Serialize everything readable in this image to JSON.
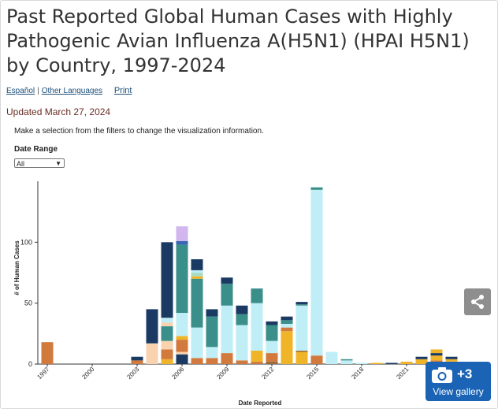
{
  "page": {
    "title": "Past Reported Global Human Cases with Highly Pathogenic Avian Influenza A(H5N1) (HPAI H5N1) by Country, 1997-2024",
    "lang_link": "Español",
    "separator": "|",
    "other_lang_link": "Other Languages",
    "print_link": "Print",
    "updated": "Updated March 27, 2024",
    "instructions": "Make a selection from the filters to change the visualization information.",
    "filter_label": "Date Range",
    "filter_value": "All",
    "share_icon": "share-icon",
    "gallery_count": "+3",
    "gallery_label": "View gallery",
    "gallery_icon": "camera-icon"
  },
  "chart_data": {
    "type": "bar",
    "stacked": true,
    "xlabel": "Date Reported",
    "ylabel": "# of Human Cases",
    "ylim": [
      0,
      150
    ],
    "y_ticks": [
      0,
      50,
      100
    ],
    "x_tick_labels": [
      "1997",
      "2000",
      "2003",
      "2006",
      "2009",
      "2012",
      "2015",
      "2018",
      "2021"
    ],
    "colors": {
      "navy": "#1b3a63",
      "cyan": "#bfeef6",
      "teal": "#3a8f8a",
      "orange": "#d27a3e",
      "peach": "#f9d3b0",
      "gold": "#f0b429",
      "lavender": "#d2b6ee",
      "blue": "#3b66b3",
      "lightgreen": "#a8dcc4",
      "brown": "#9c6b3a"
    },
    "bars": [
      {
        "x": 1997,
        "segments": [
          {
            "color": "orange",
            "value": 18
          }
        ]
      },
      {
        "x": 2003,
        "segments": [
          {
            "color": "orange",
            "value": 3
          },
          {
            "color": "navy",
            "value": 3
          }
        ]
      },
      {
        "x": 2004,
        "segments": [
          {
            "color": "peach",
            "value": 17
          },
          {
            "color": "navy",
            "value": 28
          }
        ]
      },
      {
        "x": 2005,
        "segments": [
          {
            "color": "gold",
            "value": 4
          },
          {
            "color": "orange",
            "value": 8
          },
          {
            "color": "peach",
            "value": 7
          },
          {
            "color": "teal",
            "value": 12
          },
          {
            "color": "peach",
            "value": 3
          },
          {
            "color": "cyan",
            "value": 4
          },
          {
            "color": "navy",
            "value": 62
          }
        ]
      },
      {
        "x": 2006,
        "segments": [
          {
            "color": "navy",
            "value": 8
          },
          {
            "color": "peach",
            "value": 2
          },
          {
            "color": "orange",
            "value": 10
          },
          {
            "color": "gold",
            "value": 3
          },
          {
            "color": "cyan",
            "value": 19
          },
          {
            "color": "teal",
            "value": 56
          },
          {
            "color": "blue",
            "value": 3
          },
          {
            "color": "lavender",
            "value": 12
          }
        ]
      },
      {
        "x": 2007,
        "segments": [
          {
            "color": "orange",
            "value": 5
          },
          {
            "color": "cyan",
            "value": 25
          },
          {
            "color": "teal",
            "value": 40
          },
          {
            "color": "gold",
            "value": 2
          },
          {
            "color": "lightgreen",
            "value": 3
          },
          {
            "color": "cyan",
            "value": 2
          },
          {
            "color": "navy",
            "value": 9
          }
        ]
      },
      {
        "x": 2008,
        "segments": [
          {
            "color": "orange",
            "value": 5
          },
          {
            "color": "cyan",
            "value": 9
          },
          {
            "color": "teal",
            "value": 25
          },
          {
            "color": "navy",
            "value": 6
          }
        ]
      },
      {
        "x": 2009,
        "segments": [
          {
            "color": "orange",
            "value": 9
          },
          {
            "color": "cyan",
            "value": 39
          },
          {
            "color": "teal",
            "value": 18
          },
          {
            "color": "navy",
            "value": 5
          }
        ]
      },
      {
        "x": 2010,
        "segments": [
          {
            "color": "orange",
            "value": 3
          },
          {
            "color": "cyan",
            "value": 29
          },
          {
            "color": "teal",
            "value": 9
          },
          {
            "color": "navy",
            "value": 7
          }
        ]
      },
      {
        "x": 2011,
        "segments": [
          {
            "color": "orange",
            "value": 2
          },
          {
            "color": "gold",
            "value": 9
          },
          {
            "color": "cyan",
            "value": 39
          },
          {
            "color": "teal",
            "value": 12
          }
        ]
      },
      {
        "x": 2012,
        "segments": [
          {
            "color": "brown",
            "value": 2
          },
          {
            "color": "orange",
            "value": 7
          },
          {
            "color": "cyan",
            "value": 10
          },
          {
            "color": "teal",
            "value": 13
          },
          {
            "color": "navy",
            "value": 3
          }
        ]
      },
      {
        "x": 2013,
        "segments": [
          {
            "color": "gold",
            "value": 27
          },
          {
            "color": "orange",
            "value": 3
          },
          {
            "color": "cyan",
            "value": 3
          },
          {
            "color": "teal",
            "value": 3
          },
          {
            "color": "navy",
            "value": 3
          }
        ]
      },
      {
        "x": 2014,
        "segments": [
          {
            "color": "gold",
            "value": 10
          },
          {
            "color": "brown",
            "value": 1
          },
          {
            "color": "cyan",
            "value": 37
          },
          {
            "color": "teal",
            "value": 1
          },
          {
            "color": "navy",
            "value": 2
          }
        ]
      },
      {
        "x": 2015,
        "segments": [
          {
            "color": "orange",
            "value": 7
          },
          {
            "color": "cyan",
            "value": 136
          },
          {
            "color": "teal",
            "value": 2
          }
        ]
      },
      {
        "x": 2016,
        "segments": [
          {
            "color": "cyan",
            "value": 10
          }
        ]
      },
      {
        "x": 2017,
        "segments": [
          {
            "color": "cyan",
            "value": 3
          },
          {
            "color": "teal",
            "value": 1
          }
        ]
      },
      {
        "x": 2018,
        "segments": [
          {
            "color": "cyan",
            "value": 1
          }
        ]
      },
      {
        "x": 2019,
        "segments": [
          {
            "color": "gold",
            "value": 1
          }
        ]
      },
      {
        "x": 2020,
        "segments": [
          {
            "color": "navy",
            "value": 1
          }
        ]
      },
      {
        "x": 2021,
        "segments": [
          {
            "color": "gold",
            "value": 2
          }
        ]
      },
      {
        "x": 2022,
        "segments": [
          {
            "color": "gold",
            "value": 4
          },
          {
            "color": "navy",
            "value": 2
          }
        ]
      },
      {
        "x": 2023,
        "segments": [
          {
            "color": "orange",
            "value": 3
          },
          {
            "color": "gold",
            "value": 4
          },
          {
            "color": "navy",
            "value": 2
          },
          {
            "color": "gold",
            "value": 3
          }
        ]
      },
      {
        "x": 2024,
        "segments": [
          {
            "color": "orange",
            "value": 2
          },
          {
            "color": "gold",
            "value": 2
          },
          {
            "color": "navy",
            "value": 2
          }
        ]
      }
    ]
  }
}
